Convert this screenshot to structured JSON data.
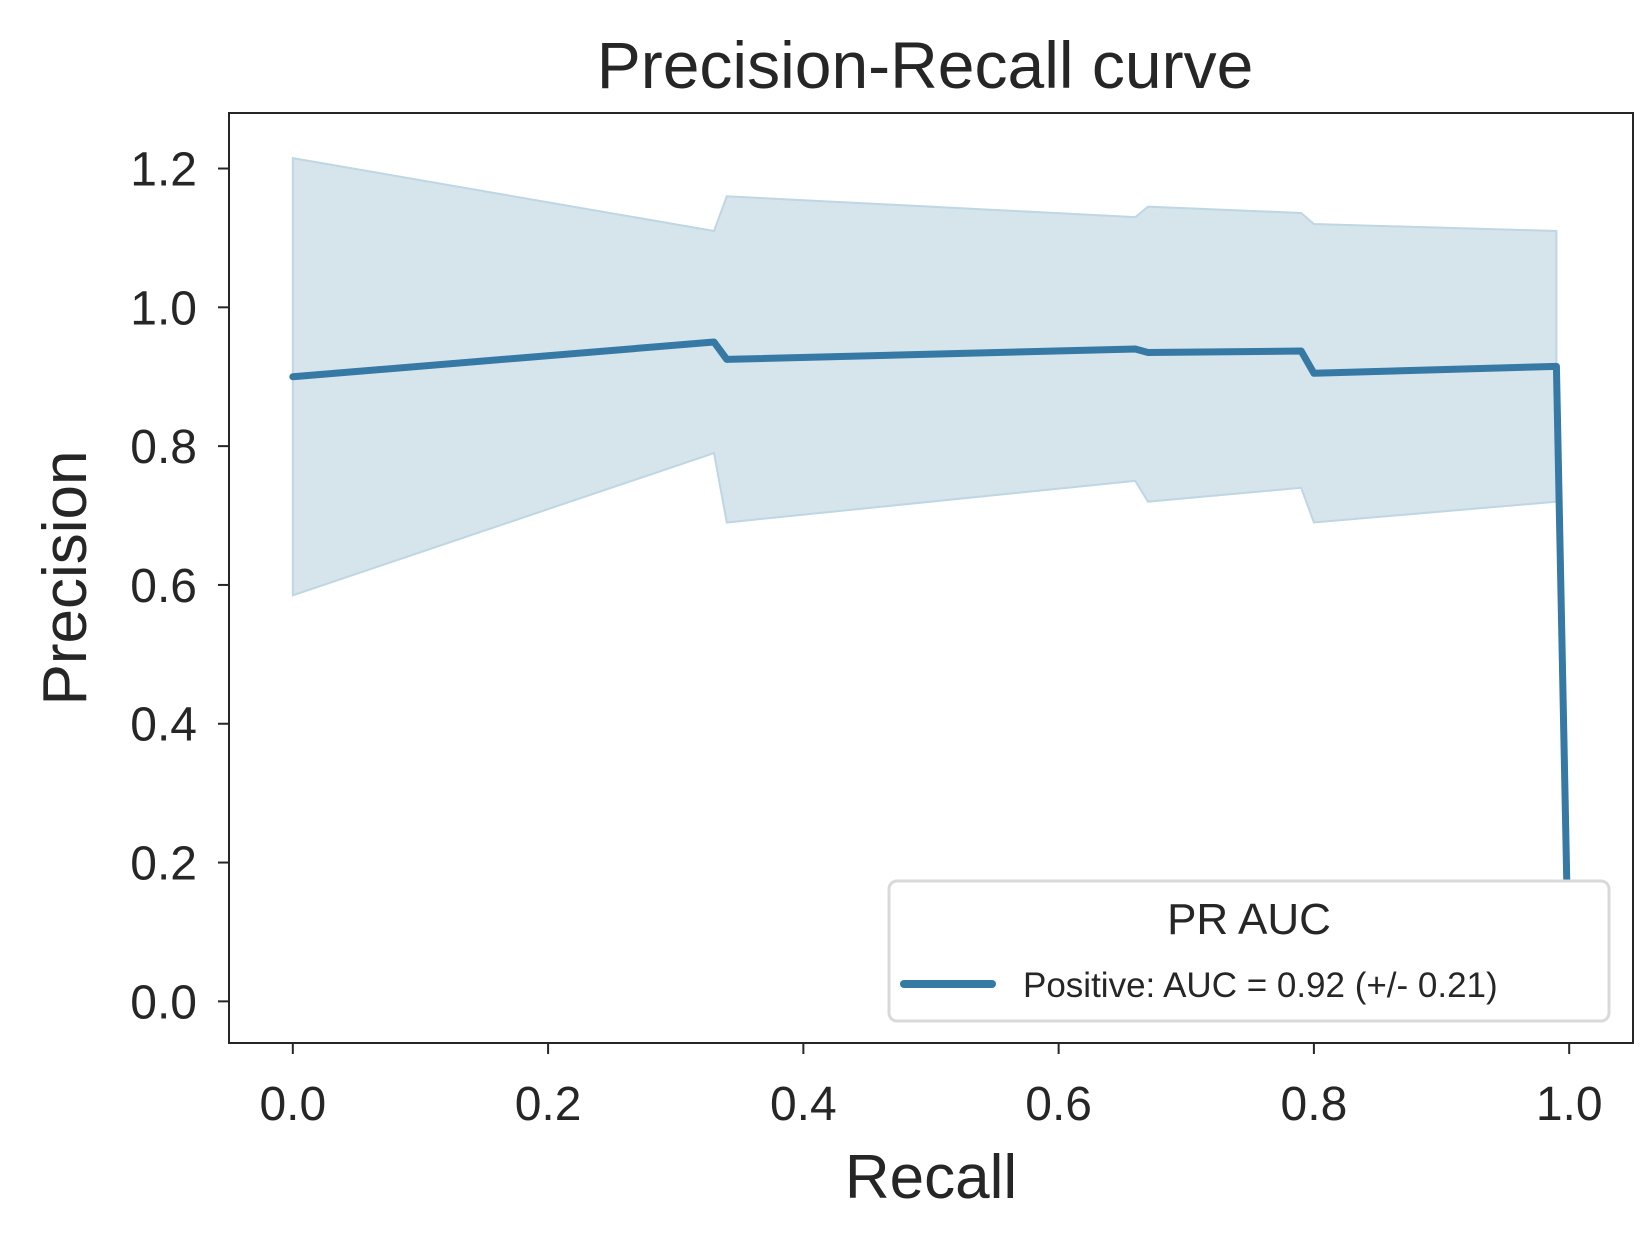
{
  "chart_data": {
    "type": "line",
    "title": "Precision-Recall curve",
    "xlabel": "Recall",
    "ylabel": "Precision",
    "xlim": [
      -0.05,
      1.05
    ],
    "ylim": [
      -0.06,
      1.28
    ],
    "xticks": [
      0.0,
      0.2,
      0.4,
      0.6,
      0.8,
      1.0
    ],
    "xtick_labels": [
      "0.0",
      "0.2",
      "0.4",
      "0.6",
      "0.8",
      "1.0"
    ],
    "yticks": [
      0.0,
      0.2,
      0.4,
      0.6,
      0.8,
      1.0,
      1.2
    ],
    "ytick_labels": [
      "0.0",
      "0.2",
      "0.4",
      "0.6",
      "0.8",
      "1.0",
      "1.2"
    ],
    "grid": false,
    "legend": {
      "title": "PR AUC",
      "placement": "lower-right"
    },
    "series": [
      {
        "name": "Positive: AUC = 0.92 (+/- 0.21)",
        "color": "#3579a4",
        "band_color": "#d6e4ec",
        "x": [
          0.0,
          0.33,
          0.34,
          0.66,
          0.67,
          0.79,
          0.8,
          0.99,
          1.0
        ],
        "y": [
          0.9,
          0.95,
          0.925,
          0.94,
          0.935,
          0.937,
          0.905,
          0.915,
          0.0
        ],
        "upper": [
          1.215,
          1.11,
          1.16,
          1.13,
          1.145,
          1.136,
          1.12,
          1.11,
          null
        ],
        "lower": [
          0.585,
          0.79,
          0.69,
          0.75,
          0.72,
          0.74,
          0.69,
          0.72,
          null
        ]
      }
    ]
  }
}
